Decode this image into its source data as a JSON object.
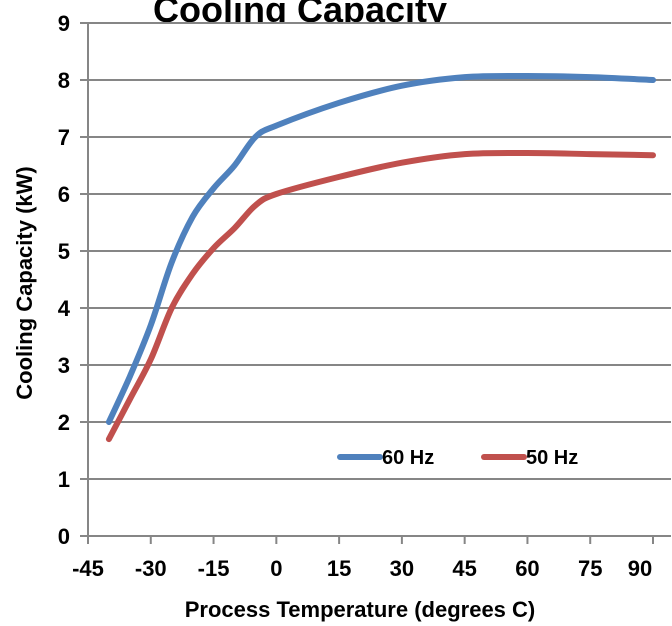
{
  "chart_data": {
    "type": "line",
    "title": "Cooling Capacity",
    "xlabel": "Process Temperature (degrees C)",
    "ylabel": "Cooling Capacity (kW)",
    "xlim": [
      -45,
      90
    ],
    "ylim": [
      0,
      9
    ],
    "xticks": [
      -45,
      -30,
      -15,
      0,
      15,
      30,
      45,
      60,
      75,
      90
    ],
    "yticks": [
      0,
      1,
      2,
      3,
      4,
      5,
      6,
      7,
      8,
      9
    ],
    "grid": "horizontal",
    "legend_position": "lower-right",
    "series": [
      {
        "name": "60 Hz",
        "color": "#4F81BD",
        "x": [
          -40,
          -35,
          -30,
          -25,
          -20,
          -15,
          -10,
          -5,
          0,
          15,
          30,
          45,
          60,
          75,
          90
        ],
        "y": [
          2.0,
          2.8,
          3.7,
          4.8,
          5.6,
          6.1,
          6.5,
          7.0,
          7.2,
          7.6,
          7.9,
          8.05,
          8.07,
          8.05,
          8.0
        ]
      },
      {
        "name": "50 Hz",
        "color": "#C0504D",
        "x": [
          -40,
          -35,
          -30,
          -25,
          -20,
          -15,
          -10,
          -5,
          0,
          15,
          30,
          45,
          60,
          75,
          90
        ],
        "y": [
          1.7,
          2.4,
          3.1,
          4.0,
          4.6,
          5.05,
          5.4,
          5.8,
          6.0,
          6.3,
          6.55,
          6.7,
          6.72,
          6.7,
          6.68
        ]
      }
    ]
  }
}
